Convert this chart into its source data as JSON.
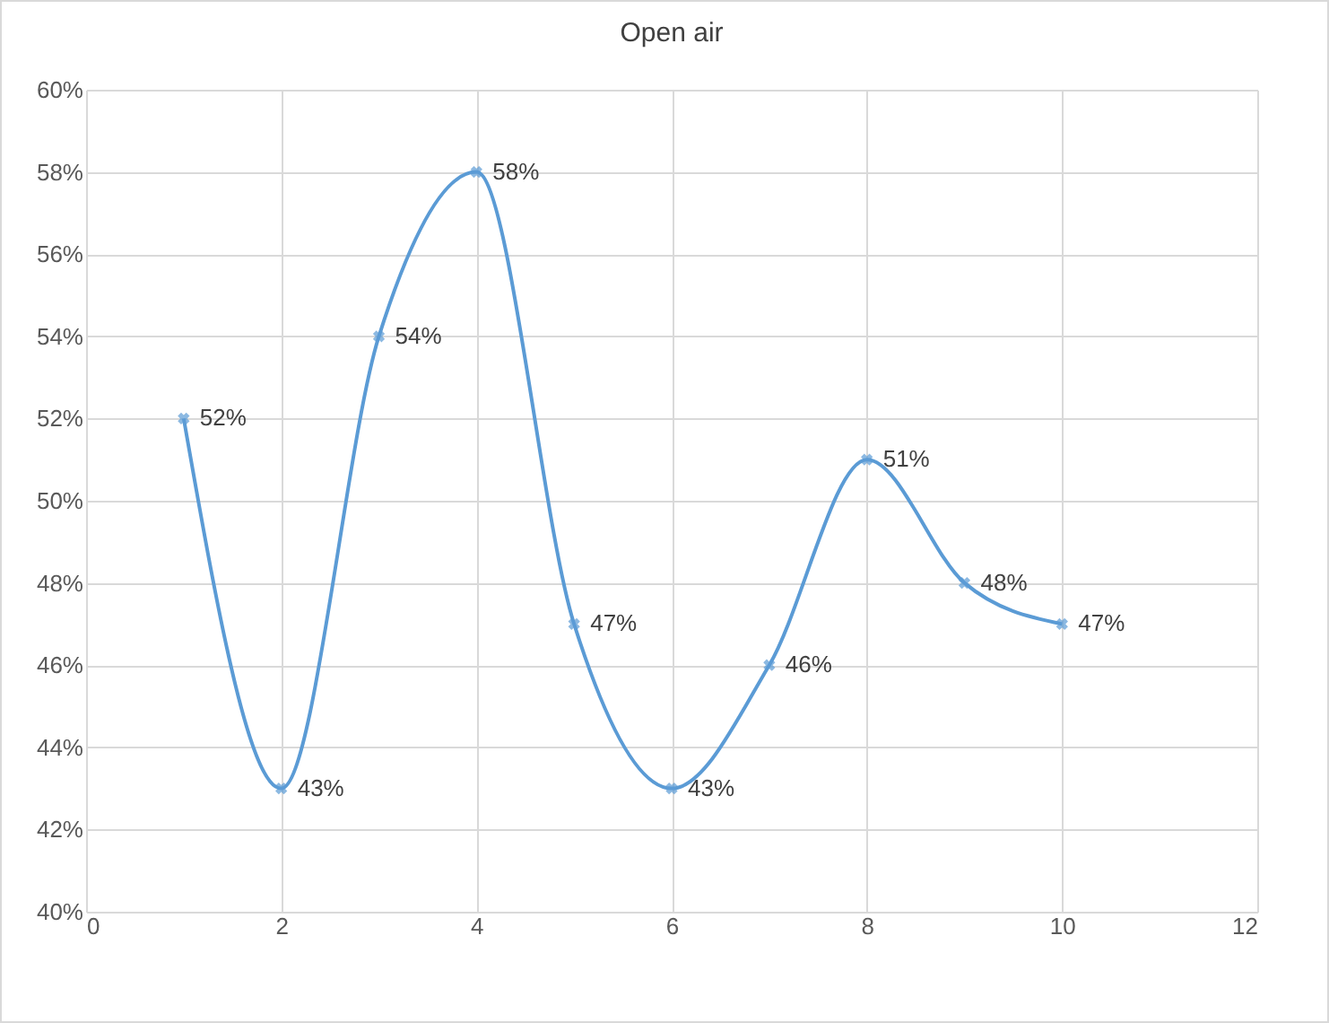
{
  "chart_data": {
    "type": "line",
    "title": "Open air",
    "x": [
      1,
      2,
      3,
      4,
      5,
      6,
      7,
      8,
      9,
      10
    ],
    "series": [
      {
        "color": "#5b9bd5",
        "values": [
          52,
          43,
          54,
          58,
          47,
          43,
          46,
          51,
          48,
          47
        ],
        "value_labels": [
          "52%",
          "43%",
          "54%",
          "58%",
          "47%",
          "43%",
          "46%",
          "51%",
          "48%",
          "47%"
        ]
      }
    ],
    "xlim": [
      0,
      12
    ],
    "xticks": [
      0,
      2,
      4,
      6,
      8,
      10,
      12
    ],
    "ylim": [
      40,
      60
    ],
    "yticks": [
      {
        "value": 40,
        "label": "40%"
      },
      {
        "value": 42,
        "label": "42%"
      },
      {
        "value": 44,
        "label": "44%"
      },
      {
        "value": 46,
        "label": "46%"
      },
      {
        "value": 48,
        "label": "48%"
      },
      {
        "value": 50,
        "label": "50%"
      },
      {
        "value": 52,
        "label": "52%"
      },
      {
        "value": 54,
        "label": "54%"
      },
      {
        "value": 56,
        "label": "56%"
      },
      {
        "value": 58,
        "label": "58%"
      },
      {
        "value": 60,
        "label": "60%"
      }
    ],
    "grid": true,
    "marker": "cross",
    "line_style": "solid"
  }
}
